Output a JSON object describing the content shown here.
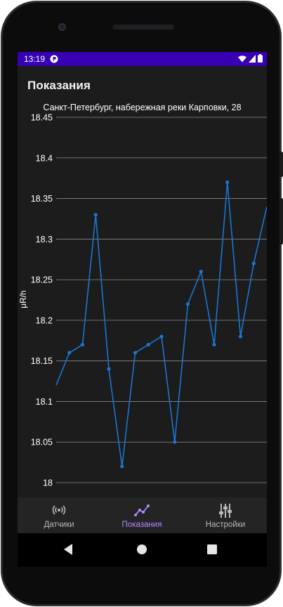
{
  "status_bar": {
    "time": "13:19",
    "app_icon": "p-circle-icon",
    "icons": [
      "wifi-icon",
      "signal-icon",
      "battery-icon"
    ],
    "color": "#3700b3"
  },
  "page": {
    "title": "Показания"
  },
  "chart_data": {
    "type": "line",
    "title": "Санкт-Петербург, набережная реки Карповки, 28",
    "ylabel": "μR/h",
    "xlabel": "",
    "ylim": [
      18.0,
      18.45
    ],
    "yticks": [
      "18",
      "18.05",
      "18.1",
      "18.15",
      "18.2",
      "18.25",
      "18.3",
      "18.35",
      "18.4",
      "18.45"
    ],
    "grid": "horizontal",
    "series": [
      {
        "color": "#1a75d2",
        "values": [
          18.12,
          18.16,
          18.17,
          18.33,
          18.14,
          18.02,
          18.16,
          18.17,
          18.18,
          18.05,
          18.22,
          18.26,
          18.17,
          18.37,
          18.18,
          18.27,
          18.34
        ]
      }
    ]
  },
  "bottom_nav": {
    "items": [
      {
        "label": "Датчики",
        "icon": "sensors-icon",
        "active": false
      },
      {
        "label": "Показания",
        "icon": "chart-line-icon",
        "active": true
      },
      {
        "label": "Настройки",
        "icon": "sliders-icon",
        "active": false
      }
    ],
    "active_color": "#b388ff"
  },
  "system_nav": {
    "buttons": [
      "back-button",
      "home-button",
      "recents-button"
    ]
  }
}
